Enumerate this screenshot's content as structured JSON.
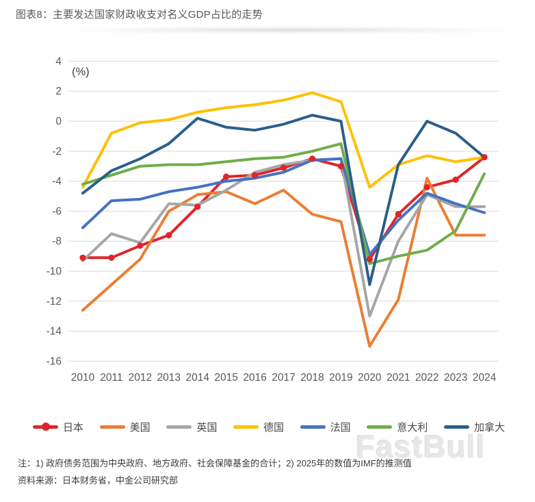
{
  "page": {
    "title": "图表8：主要发达国家财政收支对名义GDP占比的走势",
    "note_line1": "注：1) 政府债务范围为中央政府、地方政府、社会保障基金的合计；2) 2025年的数值为IMF的推测值",
    "note_line2": "资料来源：日本财务省，中金公司研究部",
    "watermark": "FastBull"
  },
  "chart_data": {
    "type": "line",
    "title": "图表8：主要发达国家财政收支对名义GDP占比的走势",
    "unit_label": "(%)",
    "xlabel": "",
    "ylabel": "(%)",
    "ylim": [
      -16,
      4
    ],
    "ytick_step": 2,
    "yticks": [
      4,
      2,
      0,
      -2,
      -4,
      -6,
      -8,
      -10,
      -12,
      -14,
      -16
    ],
    "grid": "horizontal",
    "gridline_color": "#d9d9d9",
    "tick_label_color": "#595959",
    "legend_position": "bottom",
    "x": [
      2010,
      2011,
      2012,
      2013,
      2014,
      2015,
      2016,
      2017,
      2018,
      2019,
      2020,
      2021,
      2022,
      2023,
      2024
    ],
    "series": [
      {
        "id": "japan",
        "name": "日本",
        "color": "#e02528",
        "marker": "circle",
        "values": [
          -9.1,
          -9.1,
          -8.3,
          -7.6,
          -5.7,
          -3.7,
          -3.6,
          -3.1,
          -2.5,
          -3.0,
          -9.2,
          -6.2,
          -4.4,
          -3.9,
          -2.4
        ]
      },
      {
        "id": "usa",
        "name": "美国",
        "color": "#ED7D31",
        "marker": "none",
        "values": [
          -12.6,
          -10.9,
          -9.2,
          -6.0,
          -4.9,
          -4.7,
          -5.5,
          -4.6,
          -6.2,
          -6.7,
          -15.0,
          -11.9,
          -3.8,
          -7.6,
          -7.6
        ]
      },
      {
        "id": "uk",
        "name": "英国",
        "color": "#A6A6A6",
        "marker": "none",
        "values": [
          -9.3,
          -7.5,
          -8.1,
          -5.5,
          -5.6,
          -4.6,
          -3.4,
          -2.9,
          -2.6,
          -2.5,
          -13.0,
          -8.0,
          -4.9,
          -5.7,
          -5.7
        ]
      },
      {
        "id": "germany",
        "name": "德国",
        "color": "#FFC000",
        "marker": "none",
        "values": [
          -4.4,
          -0.8,
          -0.1,
          0.1,
          0.6,
          0.9,
          1.1,
          1.4,
          1.9,
          1.3,
          -4.4,
          -2.9,
          -2.3,
          -2.7,
          -2.4
        ]
      },
      {
        "id": "france",
        "name": "法国",
        "color": "#4472C4",
        "marker": "none",
        "values": [
          -7.1,
          -5.3,
          -5.2,
          -4.7,
          -4.4,
          -4.0,
          -3.8,
          -3.4,
          -2.6,
          -2.5,
          -8.9,
          -6.6,
          -4.8,
          -5.5,
          -6.1
        ]
      },
      {
        "id": "italy",
        "name": "意大利",
        "color": "#70AD47",
        "marker": "none",
        "values": [
          -4.2,
          -3.6,
          -3.0,
          -2.9,
          -2.9,
          -2.7,
          -2.5,
          -2.4,
          -2.0,
          -1.5,
          -9.5,
          -9.0,
          -8.6,
          -7.3,
          -3.5
        ]
      },
      {
        "id": "canada",
        "name": "加拿大",
        "color": "#2B5F8A",
        "marker": "none",
        "values": [
          -4.8,
          -3.3,
          -2.5,
          -1.5,
          0.2,
          -0.4,
          -0.6,
          -0.2,
          0.4,
          0.0,
          -10.9,
          -2.9,
          0.0,
          -0.8,
          -2.4
        ]
      }
    ]
  }
}
